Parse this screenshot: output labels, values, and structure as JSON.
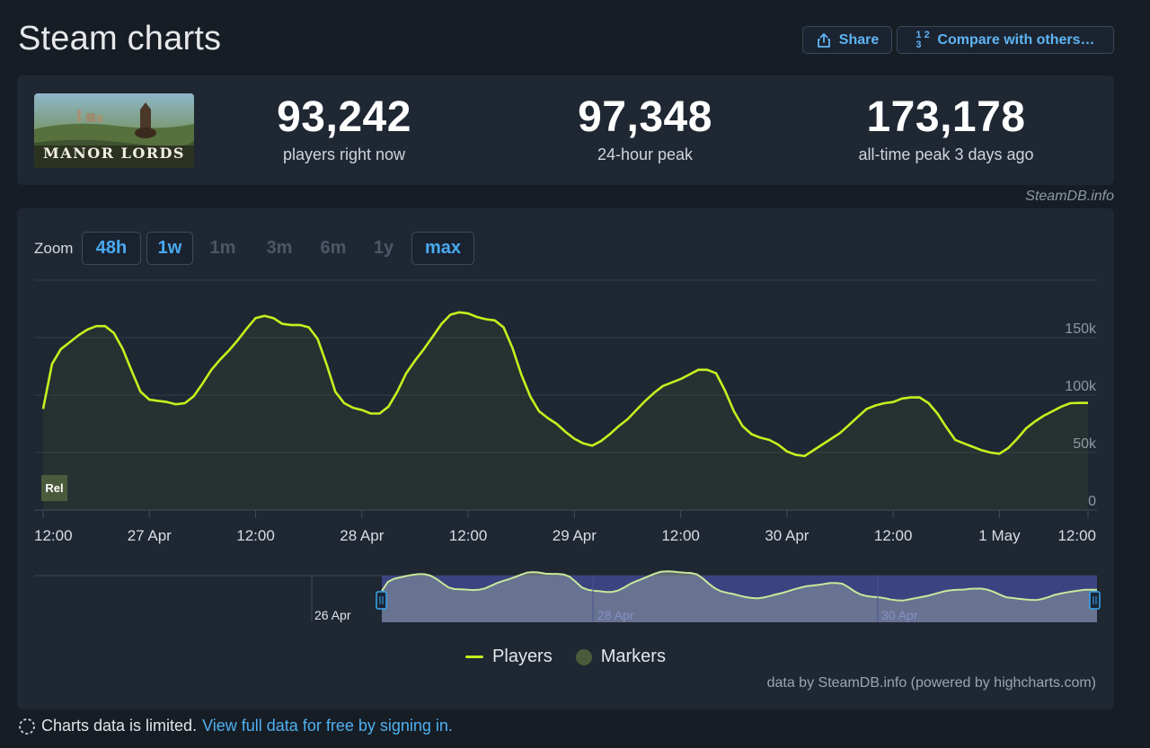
{
  "page": {
    "title": "Steam charts"
  },
  "header": {
    "share_label": "Share",
    "compare_label": "Compare with others…",
    "compare_icon_text": "1 2 3"
  },
  "stats": {
    "game_logo_text": "MANOR LORDS",
    "current": {
      "value": "93,242",
      "label": "players right now"
    },
    "peak24": {
      "value": "97,348",
      "label": "24-hour peak"
    },
    "alltime": {
      "value": "173,178",
      "label": "all-time peak 3 days ago"
    },
    "credit": "SteamDB.info"
  },
  "zoom": {
    "label": "Zoom",
    "buttons": [
      {
        "label": "48h",
        "active": true
      },
      {
        "label": "1w",
        "active": true
      },
      {
        "label": "1m",
        "active": false
      },
      {
        "label": "3m",
        "active": false
      },
      {
        "label": "6m",
        "active": false
      },
      {
        "label": "1y",
        "active": false
      },
      {
        "label": "max",
        "active": true
      }
    ]
  },
  "chart_data": {
    "type": "area",
    "series": [
      {
        "name": "Players",
        "color": "#c6f01e",
        "x_hours": [
          0,
          1,
          2,
          3,
          4,
          5,
          6,
          7,
          8,
          9,
          10,
          11,
          12,
          13,
          14,
          15,
          16,
          17,
          18,
          19,
          20,
          21,
          22,
          23,
          24,
          25,
          26,
          27,
          28,
          29,
          30,
          31,
          32,
          33,
          34,
          35,
          36,
          37,
          38,
          39,
          40,
          41,
          42,
          43,
          44,
          45,
          46,
          47,
          48,
          49,
          50,
          51,
          52,
          53,
          54,
          55,
          56,
          57,
          58,
          59,
          60,
          61,
          62,
          63,
          64,
          65,
          66,
          67,
          68,
          69,
          70,
          71,
          72,
          73,
          74,
          75,
          76,
          77,
          78,
          79,
          80,
          81,
          82,
          83,
          84,
          85,
          86,
          87,
          88,
          89,
          90,
          91,
          92,
          93,
          94,
          95,
          96,
          97,
          98,
          99,
          100,
          101,
          102,
          103,
          104,
          105,
          106,
          107,
          108,
          109,
          110,
          111,
          112,
          113,
          114,
          115,
          116,
          117,
          118,
          119,
          120,
          121,
          122,
          123,
          124,
          125,
          126,
          127,
          128,
          129,
          130,
          131,
          132,
          133,
          134,
          135,
          136,
          137,
          138,
          139,
          140,
          141,
          142,
          143,
          144
        ],
        "values": [
          88000,
          127000,
          140000,
          146000,
          152000,
          157000,
          160000,
          160000,
          154000,
          140000,
          121000,
          103000,
          96000,
          95000,
          94000,
          92000,
          93000,
          99000,
          110000,
          122000,
          131000,
          139000,
          148000,
          158000,
          167000,
          169000,
          167000,
          162000,
          161000,
          161000,
          159000,
          149000,
          127000,
          103000,
          93000,
          89000,
          87000,
          84000,
          84000,
          90000,
          103000,
          119000,
          130000,
          140000,
          151000,
          162000,
          170000,
          172000,
          171000,
          168000,
          166000,
          165000,
          159000,
          141000,
          118000,
          99000,
          86000,
          80000,
          75000,
          68000,
          62000,
          58000,
          56000,
          60000,
          66000,
          73000,
          79000,
          87000,
          95000,
          102000,
          108000,
          111000,
          114000,
          118000,
          122000,
          122000,
          119000,
          104000,
          86000,
          73000,
          66000,
          63000,
          61000,
          57000,
          51000,
          48000,
          47000,
          52000,
          57000,
          62000,
          67000,
          74000,
          81000,
          88000,
          91000,
          93000,
          94000,
          97000,
          98000,
          98000,
          93000,
          84000,
          72000,
          61000,
          58000,
          55000,
          52000,
          50000,
          49000,
          54000,
          62000,
          71000,
          77000,
          82000,
          86000,
          90000,
          93000,
          93242,
          93242,
          93242,
          93242,
          93242,
          93242,
          93242,
          93242,
          93242,
          93242,
          93242,
          93242,
          93242,
          93242,
          93242,
          93242,
          93242,
          93242,
          93242,
          93242,
          93242,
          93242,
          93242,
          93242,
          93242,
          93242,
          93242,
          93242
        ]
      },
      {
        "name": "Markers",
        "color": "#4a5b3b"
      }
    ],
    "x_tick_labels": [
      "12:00",
      "27 Apr",
      "12:00",
      "28 Apr",
      "12:00",
      "29 Apr",
      "12:00",
      "30 Apr",
      "12:00",
      "1 May",
      "12:00"
    ],
    "y_tick_labels": [
      "0",
      "50k",
      "100k",
      "150k"
    ],
    "ylim": [
      0,
      200000
    ],
    "marker_label": "Rel",
    "navigator_labels": [
      "26 Apr",
      "28 Apr",
      "30 Apr"
    ]
  },
  "legend": {
    "players": "Players",
    "markers": "Markers"
  },
  "powered_by": "data by SteamDB.info (powered by highcharts.com)",
  "footer": {
    "text": "Charts data is limited.",
    "link": "View full data for free by signing in."
  }
}
